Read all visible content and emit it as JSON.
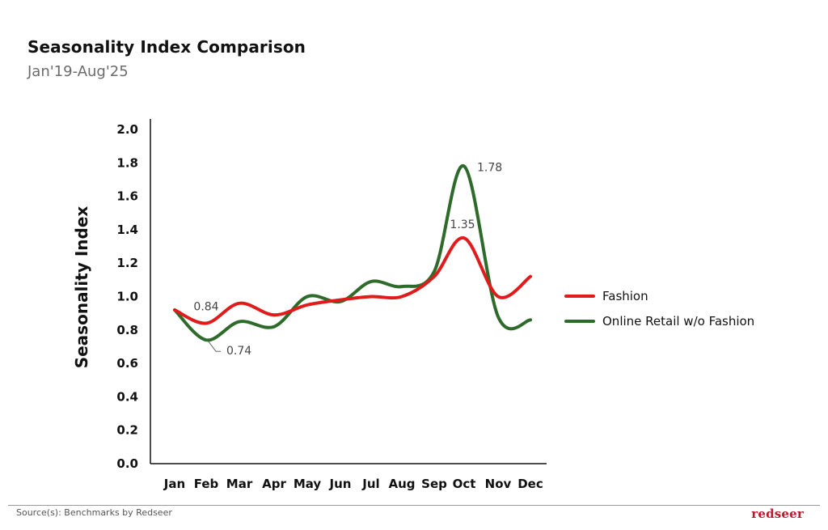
{
  "header": {
    "title": "Seasonality Index Comparison",
    "subtitle": "Jan'19-Aug'25"
  },
  "footer": {
    "source": "Source(s): Benchmarks by Redseer",
    "brand": "redseer"
  },
  "colors": {
    "fashion": "#e01b1b",
    "online_retail": "#2e6b2a"
  },
  "chart_data": {
    "type": "line",
    "title": "Seasonality Index Comparison",
    "subtitle": "Jan'19-Aug'25",
    "xlabel": "",
    "ylabel": "Seasonality Index",
    "categories": [
      "Jan",
      "Feb",
      "Mar",
      "Apr",
      "May",
      "Jun",
      "Jul",
      "Aug",
      "Sep",
      "Oct",
      "Nov",
      "Dec"
    ],
    "yticks": [
      "0.0",
      "0.2",
      "0.4",
      "0.6",
      "0.8",
      "1.0",
      "1.2",
      "1.4",
      "1.6",
      "1.8",
      "2.0"
    ],
    "ylim": [
      0,
      2.0
    ],
    "grid": false,
    "legend_position": "right",
    "series": [
      {
        "name": "Fashion",
        "color": "#e01b1b",
        "values": [
          0.92,
          0.84,
          0.96,
          0.89,
          0.95,
          0.98,
          1.0,
          1.0,
          1.12,
          1.35,
          1.0,
          1.12
        ]
      },
      {
        "name": "Online Retail w/o Fashion",
        "color": "#2e6b2a",
        "values": [
          0.92,
          0.74,
          0.85,
          0.82,
          1.0,
          0.97,
          1.09,
          1.06,
          1.15,
          1.78,
          0.88,
          0.86
        ]
      }
    ],
    "annotations": [
      {
        "series": "Fashion",
        "category": "Feb",
        "label": "0.84"
      },
      {
        "series": "Online Retail w/o Fashion",
        "category": "Feb",
        "label": "0.74"
      },
      {
        "series": "Fashion",
        "category": "Oct",
        "label": "1.35"
      },
      {
        "series": "Online Retail w/o Fashion",
        "category": "Oct",
        "label": "1.78"
      }
    ]
  }
}
